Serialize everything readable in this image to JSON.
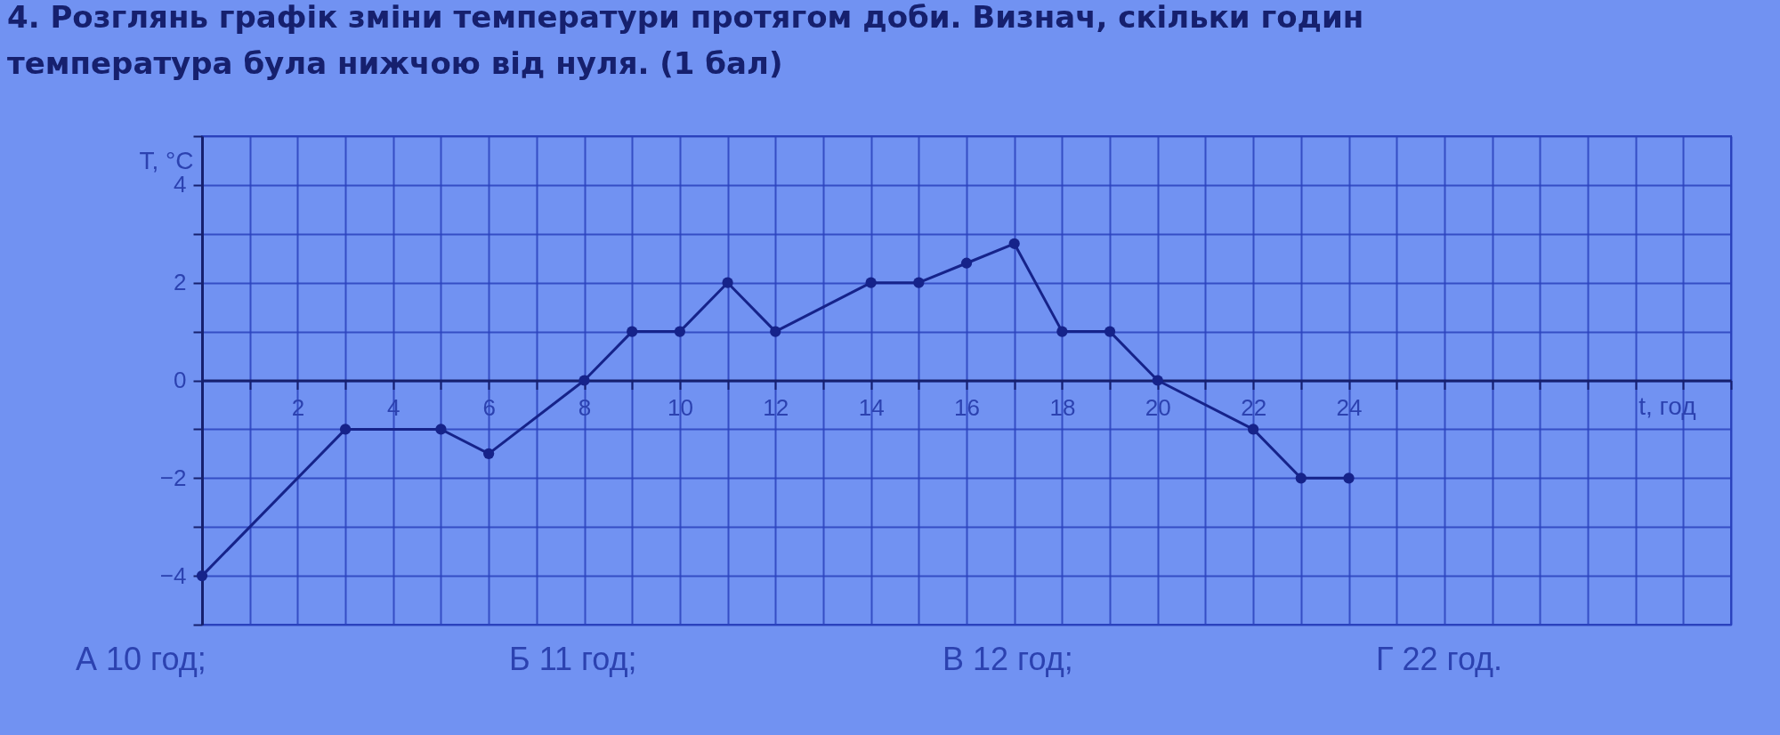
{
  "chart_data": {
    "type": "line",
    "title": "4. Розглянь графік зміни температури протягом доби. Визнач, скільки годин температура була нижчою від нуля. (1 бал)",
    "xlabel": "t, год",
    "ylabel": "T, °C",
    "x": [
      0,
      3,
      5,
      6,
      8,
      9,
      10,
      11,
      12,
      14,
      15,
      16,
      17,
      18,
      19,
      20,
      22,
      23,
      24
    ],
    "series": [
      {
        "color": "#16238a",
        "values": [
          -4,
          -1,
          -1,
          -1.5,
          0,
          1,
          1,
          2,
          1,
          2,
          2,
          2.4,
          2.8,
          1,
          1,
          0,
          -1,
          -2,
          -2
        ]
      }
    ],
    "xlim": [
      0,
      32
    ],
    "ylim": [
      -5,
      5
    ],
    "xticks": [
      {
        "value": 0,
        "label": null
      },
      {
        "value": 1,
        "label": null
      },
      2,
      {
        "value": 3,
        "label": null
      },
      4,
      {
        "value": 5,
        "label": null
      },
      6,
      {
        "value": 7,
        "label": null
      },
      8,
      {
        "value": 9,
        "label": null
      },
      10,
      {
        "value": 11,
        "label": null
      },
      12,
      {
        "value": 13,
        "label": null
      },
      14,
      {
        "value": 15,
        "label": null
      },
      16,
      {
        "value": 17,
        "label": null
      },
      18,
      {
        "value": 19,
        "label": null
      },
      20,
      {
        "value": 21,
        "label": null
      },
      22,
      {
        "value": 23,
        "label": null
      },
      24,
      {
        "value": 25,
        "label": null
      },
      {
        "value": 26,
        "label": null
      },
      {
        "value": 27,
        "label": null
      },
      {
        "value": 28,
        "label": null
      },
      {
        "value": 29,
        "label": null
      },
      {
        "value": 30,
        "label": null
      },
      {
        "value": 31,
        "label": null
      },
      {
        "value": 32,
        "label": null
      }
    ],
    "yticks": [
      {
        "value": -5,
        "label": null
      },
      -4,
      {
        "value": -3,
        "label": null
      },
      -2,
      {
        "value": -1,
        "label": null
      },
      0,
      {
        "value": 1,
        "label": null
      },
      2,
      {
        "value": 3,
        "label": null
      },
      4,
      {
        "value": 5,
        "label": null
      }
    ],
    "grid": true,
    "marker": "circle",
    "line_style": "solid",
    "annotations": [
      "А 10 год;",
      "Б 11 год;",
      "В 12 год;",
      "Г 22 год."
    ]
  }
}
